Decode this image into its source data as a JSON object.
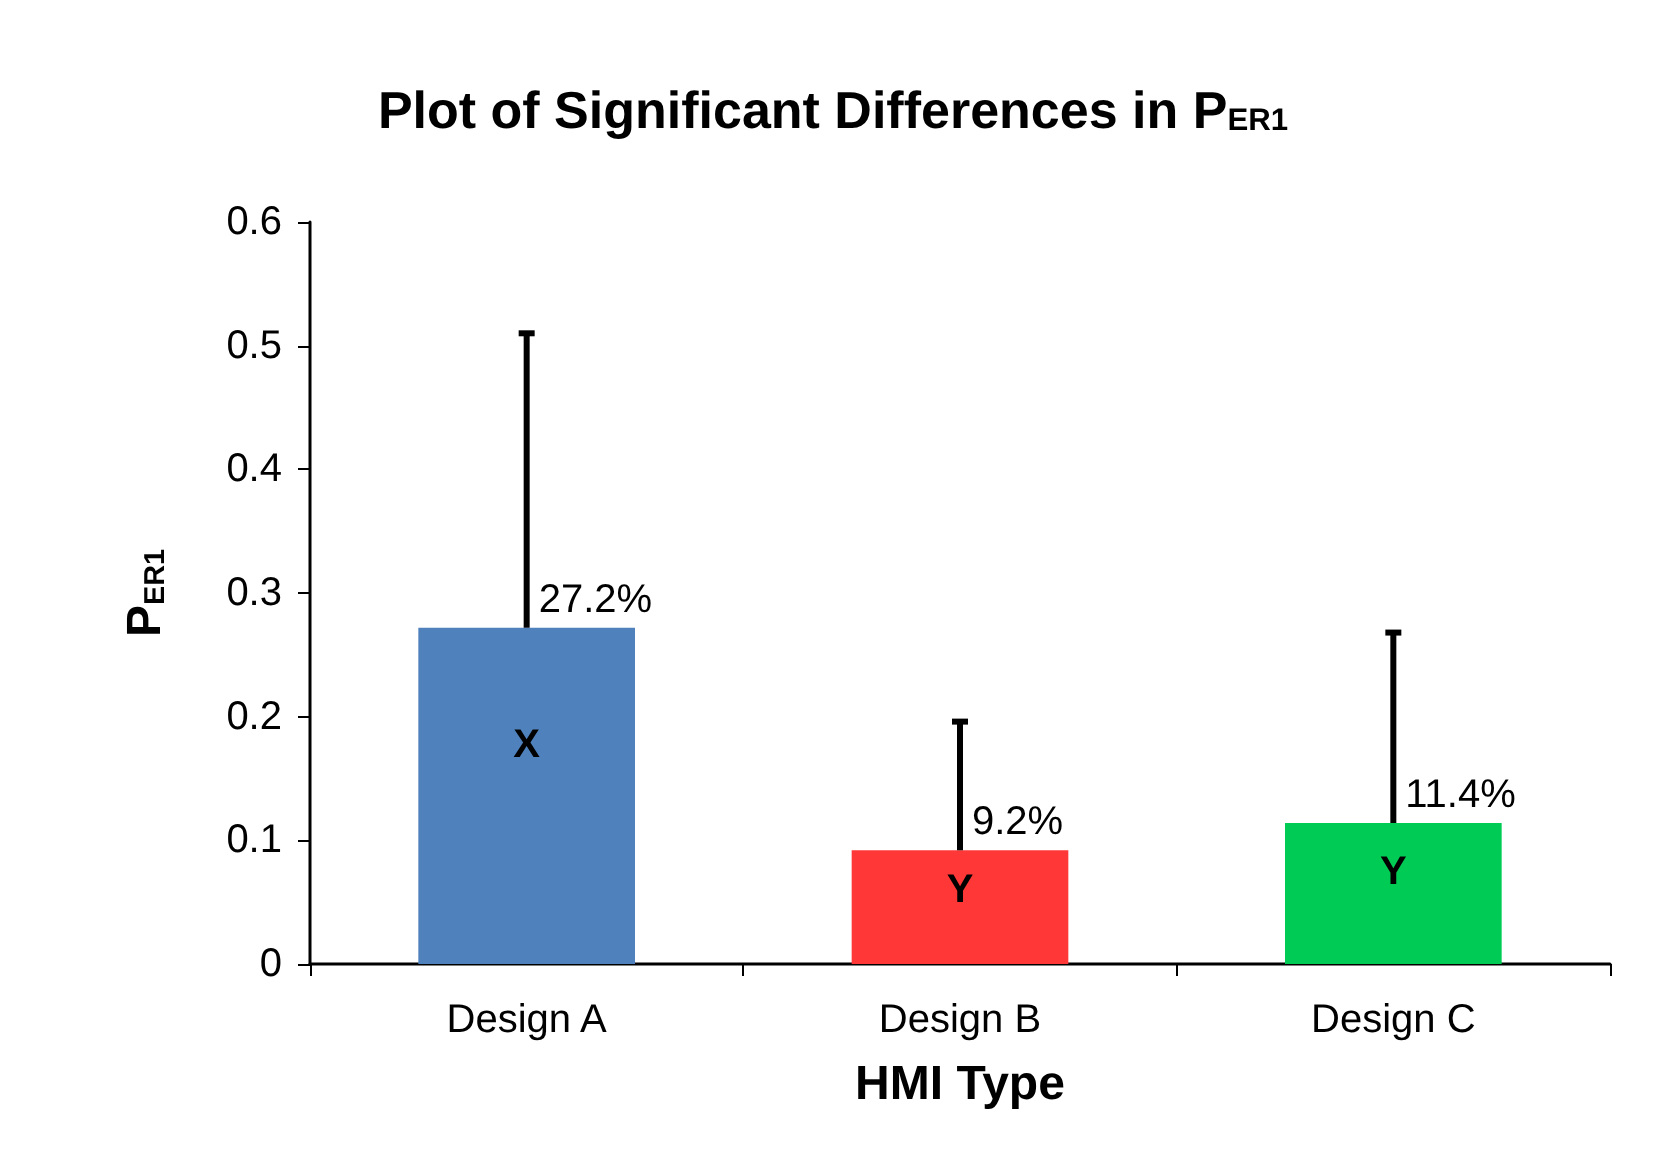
{
  "chart_data": {
    "type": "bar",
    "title": "Plot of Significant Differences in P$_{ER1}$",
    "xlabel": "HMI Type",
    "ylabel": "P$_{ER1}$",
    "categories": [
      "Design A",
      "Design B",
      "Design C"
    ],
    "values": [
      0.272,
      0.092,
      0.114
    ],
    "colors": [
      "#4f81bd",
      "#ff3737",
      "#00cc55"
    ],
    "errors": [
      [
        0.272,
        0.51
      ],
      [
        0.092,
        0.196
      ],
      [
        0.114,
        0.268
      ]
    ],
    "value_labels": [
      "27.2%",
      "9.2%",
      "11.4%"
    ],
    "annotations": [
      "X",
      "Y",
      "Y"
    ],
    "ylim": [
      0,
      0.6
    ],
    "yticks": [
      0,
      0.1,
      0.2,
      0.3,
      0.4,
      0.5,
      0.6
    ],
    "grid": false
  }
}
